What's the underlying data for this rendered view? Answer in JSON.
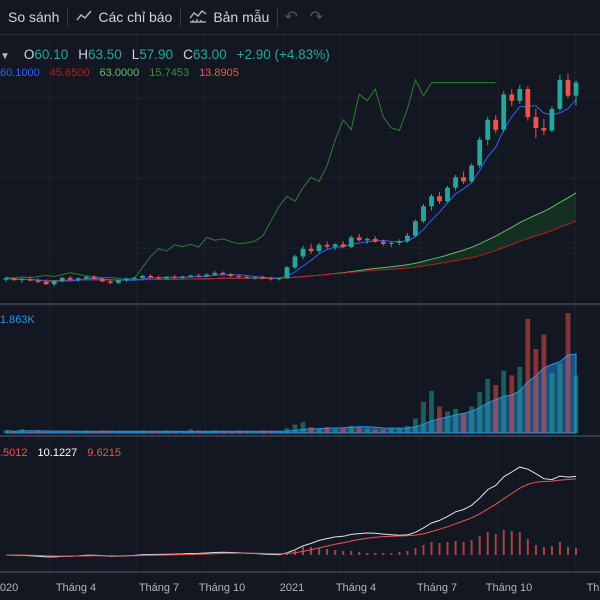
{
  "toolbar": {
    "compare_label": "So sánh",
    "indicators_label": "Các chỉ báo",
    "templates_label": "Bản mẫu",
    "undo_icon": "undo-icon",
    "redo_icon": "redo-icon"
  },
  "legend": {
    "open_label": "O",
    "open": "60.10",
    "high_label": "H",
    "high": "63.50",
    "low_label": "L",
    "low": "57.90",
    "close_label": "C",
    "close": "63.00",
    "change": "+2.90 (+4.83%)",
    "ma_values": [
      "60.1000",
      "45.6500",
      "63.0000",
      "15.7453",
      "13.8905"
    ],
    "volume_value": "1.863K",
    "macd_values": [
      ".5012",
      "10.1227",
      "9.6215"
    ]
  },
  "x_axis": [
    "2020",
    "Tháng 4",
    "Tháng 7",
    "Tháng 10",
    "2021",
    "Tháng 4",
    "Tháng 7",
    "Tháng 10",
    "Th"
  ],
  "colors": {
    "background": "#131722",
    "up": "#26a69a",
    "down": "#ef5350",
    "ma_blue": "#2962ff",
    "volume_area": "#2196f3",
    "pane_separator": "#434651"
  },
  "chart_data": {
    "type": "candlestick",
    "price_candles_ohlc": [
      [
        19.5,
        20.1,
        19.0,
        19.8
      ],
      [
        19.8,
        20.0,
        19.2,
        19.4
      ],
      [
        19.4,
        19.9,
        18.8,
        19.6
      ],
      [
        19.6,
        20.2,
        19.1,
        19.3
      ],
      [
        19.3,
        19.8,
        18.7,
        19.0
      ],
      [
        19.0,
        19.6,
        18.3,
        18.5
      ],
      [
        18.5,
        19.4,
        18.0,
        19.2
      ],
      [
        19.2,
        20.1,
        18.9,
        19.9
      ],
      [
        19.9,
        20.3,
        19.3,
        19.5
      ],
      [
        19.5,
        20.0,
        19.0,
        19.8
      ],
      [
        19.8,
        20.4,
        19.4,
        20.1
      ],
      [
        20.1,
        20.5,
        19.5,
        19.7
      ],
      [
        19.7,
        20.0,
        18.9,
        19.1
      ],
      [
        19.1,
        19.6,
        18.5,
        18.8
      ],
      [
        18.8,
        19.6,
        18.5,
        19.4
      ],
      [
        19.4,
        20.0,
        19.0,
        19.7
      ],
      [
        19.7,
        20.2,
        19.4,
        19.9
      ],
      [
        19.9,
        20.6,
        19.6,
        20.3
      ],
      [
        20.3,
        20.7,
        19.8,
        20.0
      ],
      [
        20.0,
        20.4,
        19.5,
        19.8
      ],
      [
        19.8,
        20.3,
        19.5,
        20.1
      ],
      [
        20.1,
        20.5,
        19.7,
        19.9
      ],
      [
        19.9,
        20.4,
        19.6,
        20.2
      ],
      [
        20.2,
        20.6,
        19.9,
        20.4
      ],
      [
        20.4,
        20.8,
        20.0,
        20.2
      ],
      [
        20.2,
        20.9,
        20.0,
        20.6
      ],
      [
        20.6,
        21.4,
        20.3,
        21.0
      ],
      [
        21.0,
        21.3,
        20.4,
        20.7
      ],
      [
        20.7,
        21.0,
        20.0,
        20.3
      ],
      [
        20.3,
        20.7,
        19.8,
        20.1
      ],
      [
        20.1,
        20.4,
        19.7,
        19.9
      ],
      [
        19.9,
        20.3,
        19.5,
        20.0
      ],
      [
        20.0,
        20.4,
        19.6,
        19.8
      ],
      [
        19.8,
        20.1,
        19.3,
        19.6
      ],
      [
        19.6,
        20.0,
        19.3,
        19.8
      ],
      [
        19.8,
        22.5,
        19.7,
        22.2
      ],
      [
        22.2,
        25.0,
        21.8,
        24.6
      ],
      [
        24.6,
        27.0,
        24.0,
        26.3
      ],
      [
        26.3,
        27.4,
        25.2,
        25.8
      ],
      [
        25.8,
        27.6,
        25.4,
        27.2
      ],
      [
        27.2,
        27.9,
        26.3,
        26.8
      ],
      [
        26.8,
        27.5,
        26.0,
        27.3
      ],
      [
        27.3,
        28.0,
        26.4,
        26.7
      ],
      [
        26.7,
        29.2,
        26.4,
        28.8
      ],
      [
        28.8,
        29.6,
        27.9,
        28.2
      ],
      [
        28.2,
        28.8,
        27.4,
        28.5
      ],
      [
        28.5,
        29.1,
        27.6,
        27.9
      ],
      [
        27.9,
        28.3,
        26.9,
        27.4
      ],
      [
        27.4,
        27.9,
        26.7,
        27.6
      ],
      [
        27.6,
        28.4,
        27.1,
        28.0
      ],
      [
        28.0,
        29.8,
        27.6,
        29.2
      ],
      [
        29.2,
        32.8,
        29.0,
        32.4
      ],
      [
        32.4,
        36.2,
        32.0,
        35.7
      ],
      [
        35.7,
        38.4,
        34.8,
        37.9
      ],
      [
        37.9,
        38.8,
        36.2,
        36.8
      ],
      [
        36.8,
        40.2,
        36.4,
        39.8
      ],
      [
        39.8,
        42.6,
        39.2,
        42.1
      ],
      [
        42.1,
        43.4,
        40.6,
        41.2
      ],
      [
        41.2,
        45.2,
        40.8,
        44.7
      ],
      [
        44.7,
        51.0,
        44.1,
        50.4
      ],
      [
        50.4,
        55.5,
        49.2,
        54.8
      ],
      [
        54.8,
        55.8,
        51.8,
        52.6
      ],
      [
        52.6,
        61.2,
        52.0,
        60.4
      ],
      [
        60.4,
        61.5,
        57.8,
        59.0
      ],
      [
        59.0,
        62.5,
        58.3,
        61.6
      ],
      [
        61.6,
        62.2,
        54.6,
        55.4
      ],
      [
        55.4,
        57.2,
        50.8,
        53.0
      ],
      [
        53.0,
        55.0,
        51.4,
        52.4
      ],
      [
        52.4,
        57.8,
        52.0,
        57.2
      ],
      [
        57.2,
        64.8,
        56.8,
        63.6
      ],
      [
        63.6,
        65.0,
        59.6,
        60.1
      ],
      [
        60.1,
        63.5,
        57.9,
        63.0
      ]
    ],
    "volume": [
      2,
      1,
      3,
      1,
      2,
      1,
      1,
      2,
      1,
      1,
      2,
      1,
      2,
      2,
      1,
      1,
      1,
      2,
      1,
      1,
      2,
      1,
      1,
      3,
      2,
      1,
      2,
      1,
      1,
      2,
      1,
      1,
      2,
      2,
      1,
      4,
      7,
      9,
      5,
      4,
      5,
      3,
      4,
      6,
      5,
      4,
      3,
      3,
      4,
      4,
      6,
      12,
      26,
      35,
      22,
      18,
      20,
      16,
      22,
      34,
      45,
      40,
      52,
      48,
      55,
      95,
      70,
      82,
      50,
      58,
      100,
      48
    ],
    "macd_histogram": [
      0,
      0,
      0,
      0,
      0,
      0,
      0,
      0,
      0,
      0,
      0,
      0,
      0,
      0,
      0,
      0,
      0,
      0,
      0,
      0,
      0,
      0,
      0,
      0,
      0,
      0,
      0,
      0,
      0,
      0,
      0,
      0,
      0,
      0,
      0,
      0.3,
      0.6,
      0.8,
      0.8,
      0.7,
      0.6,
      0.5,
      0.4,
      0.4,
      0.3,
      0.2,
      0.2,
      0.2,
      0.2,
      0.3,
      0.4,
      0.7,
      1.0,
      1.3,
      1.2,
      1.3,
      1.4,
      1.3,
      1.5,
      1.9,
      2.3,
      2.1,
      2.5,
      2.4,
      2.3,
      1.6,
      1.0,
      0.8,
      0.9,
      1.3,
      0.8,
      0.7
    ]
  }
}
